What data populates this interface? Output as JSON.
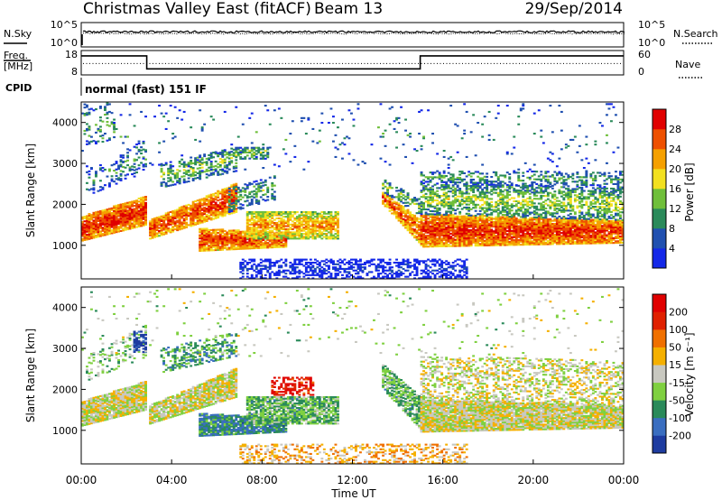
{
  "header": {
    "station": "Christmas Valley East (fitACF)",
    "beam": "Beam 13",
    "date": "29/Sep/2014"
  },
  "strip_labels": {
    "nsky": "N.Sky",
    "nsearch": "N.Search",
    "freq_top": "Freq.",
    "freq_unit": "[MHz]",
    "nave": "Nave",
    "cpid": "CPID",
    "cpid_value": "normal (fast) 151 IF"
  },
  "noise_ticks": {
    "left": [
      "10^5",
      "10^0"
    ],
    "right": [
      "10^5",
      "10^0"
    ]
  },
  "freq_ticks": {
    "left": [
      "18",
      "8"
    ],
    "right": [
      "60",
      "0"
    ]
  },
  "chart_data": [
    {
      "type": "heatmap",
      "name": "power",
      "ylabel": "Slant Range [km]",
      "xlim": [
        0,
        24
      ],
      "ylim": [
        180,
        4500
      ],
      "y_ticks": [
        1000,
        2000,
        3000,
        4000
      ],
      "y_tick_labels": [
        "1000",
        "2000",
        "3000",
        "4000"
      ],
      "colorbar": {
        "label": "Power [dB]",
        "tick_labels": [
          "4",
          "8",
          "12",
          "16",
          "20",
          "24",
          "28"
        ],
        "colors": [
          "#1428e8",
          "#2050b0",
          "#2a8a5a",
          "#6fbf3a",
          "#f2e020",
          "#f5a000",
          "#ee5000",
          "#e00000"
        ]
      },
      "bands": [
        {
          "t0": 0.0,
          "t1": 2.9,
          "r0a": 1100,
          "r0b": 1500,
          "r1a": 1700,
          "r1b": 2200,
          "level": 0.92,
          "density": 0.95
        },
        {
          "t0": 0.2,
          "t1": 2.9,
          "r0a": 2200,
          "r0b": 2800,
          "r1a": 2800,
          "r1b": 3600,
          "level": 0.35,
          "density": 0.25
        },
        {
          "t0": 0.1,
          "t1": 1.5,
          "r0a": 3400,
          "r0b": 3600,
          "r1a": 4500,
          "r1b": 4500,
          "level": 0.4,
          "density": 0.18
        },
        {
          "t0": 3.0,
          "t1": 6.8,
          "r0a": 1150,
          "r0b": 1800,
          "r1a": 1600,
          "r1b": 2500,
          "level": 0.88,
          "density": 0.9
        },
        {
          "t0": 3.5,
          "t1": 6.8,
          "r0a": 2400,
          "r0b": 2800,
          "r1a": 3000,
          "r1b": 3400,
          "level": 0.45,
          "density": 0.45
        },
        {
          "t0": 5.2,
          "t1": 9.0,
          "r0a": 850,
          "r0b": 950,
          "r1a": 1400,
          "r1b": 1300,
          "level": 0.88,
          "density": 0.92
        },
        {
          "t0": 7.3,
          "t1": 11.3,
          "r0a": 1150,
          "r0b": 1150,
          "r1a": 1800,
          "r1b": 1800,
          "level": 0.72,
          "density": 0.8
        },
        {
          "t0": 6.5,
          "t1": 8.5,
          "r0a": 1800,
          "r0b": 2100,
          "r1a": 2400,
          "r1b": 2700,
          "level": 0.4,
          "density": 0.45
        },
        {
          "t0": 6.8,
          "t1": 8.2,
          "r0a": 3100,
          "r0b": 3100,
          "r1a": 3400,
          "r1b": 3400,
          "level": 0.45,
          "density": 0.55
        },
        {
          "t0": 13.3,
          "t1": 15.0,
          "r0a": 2000,
          "r0b": 1000,
          "r1a": 2300,
          "r1b": 1600,
          "level": 0.85,
          "density": 0.85
        },
        {
          "t0": 13.3,
          "t1": 15.0,
          "r0a": 2300,
          "r0b": 1700,
          "r1a": 2600,
          "r1b": 2100,
          "level": 0.45,
          "density": 0.5
        },
        {
          "t0": 15.0,
          "t1": 24.0,
          "r0a": 950,
          "r0b": 1050,
          "r1a": 1750,
          "r1b": 1600,
          "level": 0.9,
          "density": 0.95
        },
        {
          "t0": 15.0,
          "t1": 24.0,
          "r0a": 1750,
          "r0b": 1600,
          "r1a": 2500,
          "r1b": 2400,
          "level": 0.5,
          "density": 0.55
        },
        {
          "t0": 15.0,
          "t1": 24.0,
          "r0a": 2500,
          "r0b": 2400,
          "r1a": 2800,
          "r1b": 2800,
          "level": 0.38,
          "density": 0.35
        },
        {
          "t0": 7.0,
          "t1": 17.0,
          "r0a": 180,
          "r0b": 180,
          "r1a": 650,
          "r1b": 650,
          "level": 0.12,
          "density": 0.45
        },
        {
          "t0": 0.0,
          "t1": 24.0,
          "r0a": 2800,
          "r0b": 2800,
          "r1a": 4500,
          "r1b": 4500,
          "level": 0.3,
          "density": 0.03
        }
      ]
    },
    {
      "type": "heatmap",
      "name": "velocity",
      "ylabel": "Slant Range [km]",
      "xlabel": "Time UT",
      "xlim": [
        0,
        24
      ],
      "ylim": [
        180,
        4500
      ],
      "x_ticks": [
        0,
        4,
        8,
        12,
        16,
        20,
        24
      ],
      "x_tick_labels": [
        "00:00",
        "04:00",
        "08:00",
        "12:00",
        "16:00",
        "20:00",
        "00:00"
      ],
      "y_ticks": [
        1000,
        2000,
        3000,
        4000
      ],
      "y_tick_labels": [
        "1000",
        "2000",
        "3000",
        "4000"
      ],
      "colorbar": {
        "label": "Velocity [m s⁻¹]",
        "tick_labels": [
          "200",
          "100",
          "50",
          "15",
          "-15",
          "-50",
          "-100",
          "-200"
        ],
        "colors": [
          "#1e3ca0",
          "#3a6ec0",
          "#2a8a5a",
          "#7fd040",
          "#c8c8c0",
          "#f5b000",
          "#f07000",
          "#e02000",
          "#e00000"
        ]
      },
      "bands": [
        {
          "t0": 0.0,
          "t1": 2.9,
          "r0a": 1100,
          "r0b": 1500,
          "r1a": 1700,
          "r1b": 2200,
          "level": 0.5,
          "density": 0.95
        },
        {
          "t0": 0.2,
          "t1": 2.9,
          "r0a": 2200,
          "r0b": 2800,
          "r1a": 2800,
          "r1b": 3600,
          "level": 0.4,
          "density": 0.25
        },
        {
          "t0": 2.3,
          "t1": 2.9,
          "r0a": 2900,
          "r0b": 2900,
          "r1a": 3400,
          "r1b": 3400,
          "level": 0.05,
          "density": 0.6
        },
        {
          "t0": 3.0,
          "t1": 6.8,
          "r0a": 1150,
          "r0b": 1800,
          "r1a": 1600,
          "r1b": 2500,
          "level": 0.5,
          "density": 0.9
        },
        {
          "t0": 3.5,
          "t1": 6.8,
          "r0a": 2400,
          "r0b": 2800,
          "r1a": 3000,
          "r1b": 3400,
          "level": 0.3,
          "density": 0.4
        },
        {
          "t0": 5.2,
          "t1": 9.0,
          "r0a": 850,
          "r0b": 950,
          "r1a": 1400,
          "r1b": 1300,
          "level": 0.25,
          "density": 0.9
        },
        {
          "t0": 7.3,
          "t1": 11.3,
          "r0a": 1150,
          "r0b": 1150,
          "r1a": 1800,
          "r1b": 1800,
          "level": 0.35,
          "density": 0.85
        },
        {
          "t0": 8.4,
          "t1": 10.2,
          "r0a": 1850,
          "r0b": 1850,
          "r1a": 2300,
          "r1b": 2300,
          "level": 0.88,
          "density": 0.5
        },
        {
          "t0": 13.3,
          "t1": 15.0,
          "r0a": 2000,
          "r0b": 1000,
          "r1a": 2600,
          "r1b": 1800,
          "level": 0.35,
          "density": 0.75
        },
        {
          "t0": 15.0,
          "t1": 24.0,
          "r0a": 950,
          "r0b": 1050,
          "r1a": 1750,
          "r1b": 1600,
          "level": 0.5,
          "density": 0.95
        },
        {
          "t0": 15.0,
          "t1": 24.0,
          "r0a": 1750,
          "r0b": 1600,
          "r1a": 2800,
          "r1b": 2700,
          "level": 0.5,
          "density": 0.4
        },
        {
          "t0": 7.0,
          "t1": 17.0,
          "r0a": 180,
          "r0b": 180,
          "r1a": 650,
          "r1b": 650,
          "level": 0.62,
          "density": 0.35
        },
        {
          "t0": 0.0,
          "t1": 24.0,
          "r0a": 2800,
          "r0b": 2800,
          "r1a": 4500,
          "r1b": 4500,
          "level": 0.45,
          "density": 0.03
        }
      ]
    }
  ],
  "noise_series": {
    "sky_level": 0.62,
    "search_level": 0.55
  },
  "freq_series": {
    "segments": [
      {
        "t0": 0.0,
        "t1": 2.9,
        "freq": 15.8
      },
      {
        "t0": 2.9,
        "t1": 15.0,
        "freq": 10.5
      },
      {
        "t0": 15.0,
        "t1": 24.0,
        "freq": 15.8
      }
    ],
    "nave": 28
  }
}
